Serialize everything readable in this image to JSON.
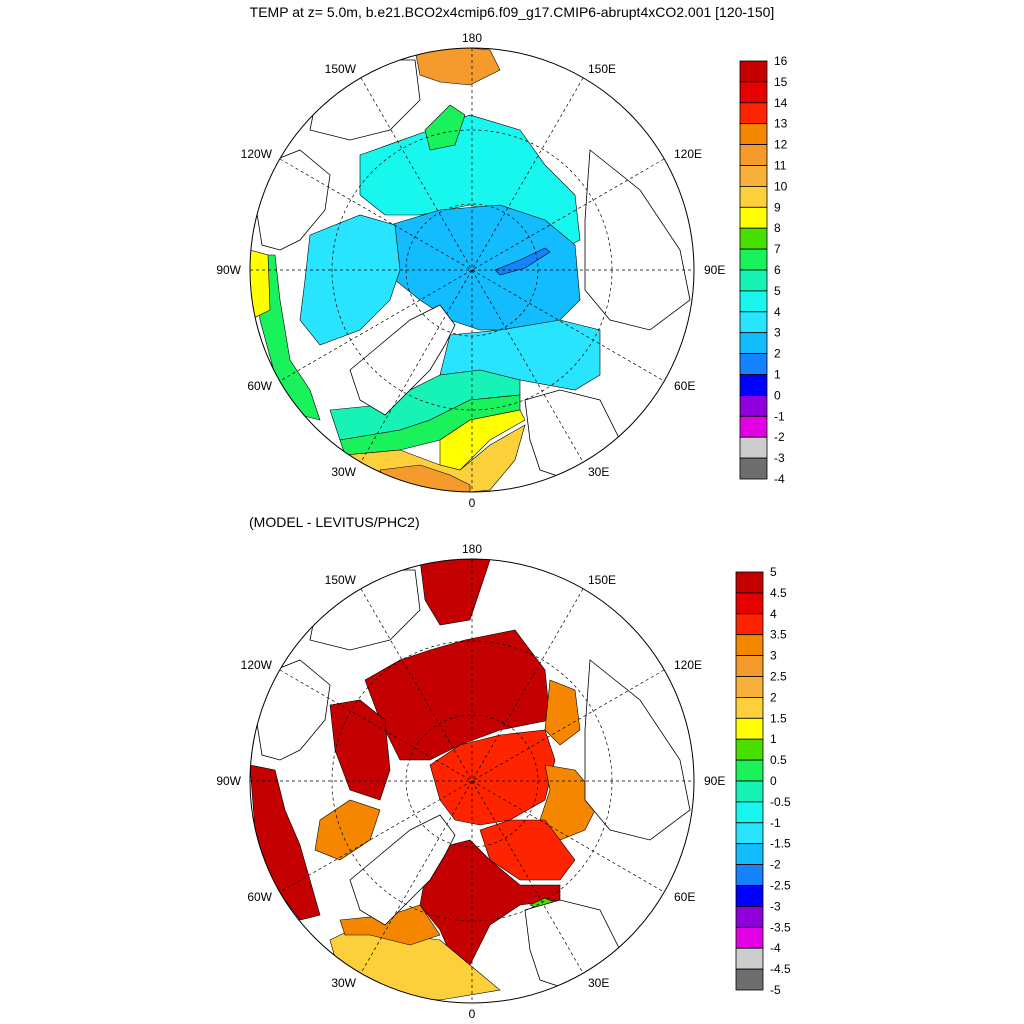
{
  "figure": {
    "title": "TEMP at z=   5.0m, b.e21.BCO2x4cmip6.f09_g17.CMIP6-abrupt4xCO2.001 [120-150]",
    "subtitle": "(MODEL - LEVITUS/PHC2)"
  },
  "map_labels": {
    "lon_180": "180",
    "lon_150w": "150W",
    "lon_150e": "150E",
    "lon_120w": "120W",
    "lon_120e": "120E",
    "lon_90w": "90W",
    "lon_90e": "90E",
    "lon_60w": "60W",
    "lon_60e": "60E",
    "lon_30w": "30W",
    "lon_30e": "30E",
    "lon_0": "0"
  },
  "colorbar_top": {
    "labels": [
      "16",
      "15",
      "14",
      "13",
      "12",
      "11",
      "10",
      "9",
      "8",
      "7",
      "6",
      "5",
      "4",
      "3",
      "2",
      "1",
      "0",
      "-1",
      "-2",
      "-3",
      "-4"
    ],
    "colors": [
      "#c40000",
      "#e60000",
      "#ff2400",
      "#f58700",
      "#f59a2c",
      "#f9b13b",
      "#fcd03a",
      "#ffff00",
      "#49e000",
      "#19f25a",
      "#17f2b6",
      "#18f7ed",
      "#28e4ff",
      "#13bcff",
      "#1582ff",
      "#0000ff",
      "#8f00dc",
      "#e400e4",
      "#cdcdcd",
      "#6e6e6e"
    ]
  },
  "colorbar_bottom": {
    "labels": [
      "5",
      "4.5",
      "4",
      "3.5",
      "3",
      "2.5",
      "2",
      "1.5",
      "1",
      "0.5",
      "0",
      "-0.5",
      "-1",
      "-1.5",
      "-2",
      "-2.5",
      "-3",
      "-3.5",
      "-4",
      "-4.5",
      "-5"
    ],
    "colors": [
      "#c40000",
      "#e60000",
      "#ff2400",
      "#f58700",
      "#f59a2c",
      "#f9b13b",
      "#fcd03a",
      "#ffff00",
      "#49e000",
      "#19f25a",
      "#17f2b6",
      "#18f7ed",
      "#28e4ff",
      "#13bcff",
      "#1582ff",
      "#0000ff",
      "#8f00dc",
      "#e400e4",
      "#cdcdcd",
      "#6e6e6e"
    ]
  },
  "chart_data": [
    {
      "type": "heatmap",
      "title": "TEMP at z=   5.0m, b.e21.BCO2x4cmip6.f09_g17.CMIP6-abrupt4xCO2.001 [120-150]",
      "projection": "north polar stereographic",
      "color_levels": [
        16,
        15,
        14,
        13,
        12,
        11,
        10,
        9,
        8,
        7,
        6,
        5,
        4,
        3,
        2,
        1,
        0,
        -1,
        -2,
        -3,
        -4
      ],
      "pattern": "central Arctic about 2-3; Beaufort/Chukchi 4-6; warm Atlantic inflow 7-13 near 0 and 30W; Labrador coast 7-9"
    },
    {
      "type": "heatmap",
      "title": "(MODEL - LEVITUS/PHC2)",
      "projection": "north polar stereographic",
      "color_levels": [
        5,
        4.5,
        4,
        3.5,
        3,
        2.5,
        2,
        1.5,
        1,
        0.5,
        0,
        -0.5,
        -1,
        -1.5,
        -2,
        -2.5,
        -3,
        -3.5,
        -4,
        -4.5,
        -5
      ],
      "pattern": "anomaly above 4.5 over Canadian basin and Labrador; 4-4.5 over Eurasian basin; 2.5-3.5 on Siberian and Barents shelves; 0.5-2 patches near Nordic seas"
    }
  ]
}
